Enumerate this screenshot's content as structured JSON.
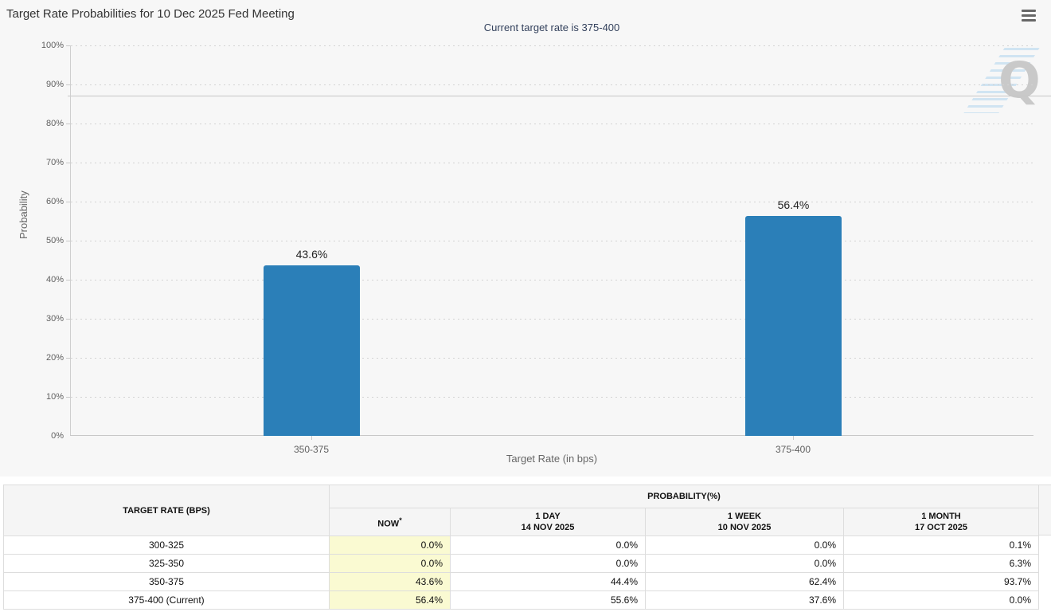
{
  "page": {
    "menu_icon": "hamburger-menu-icon",
    "watermark_letter": "Q"
  },
  "colors": {
    "bar": "#2b7fb8",
    "panel_bg": "#f7f7f7",
    "subtitle_text": "#33415c",
    "now_column_bg": "#fafad2",
    "table_border": "#dddddd",
    "header_row_bg": "#f5f5f5"
  },
  "chart_data": [
    {
      "type": "bar",
      "title": "Target Rate Probabilities for 10 Dec 2025 Fed Meeting",
      "subtitle": "Current target rate is 375-400",
      "categories": [
        "350-375",
        "375-400"
      ],
      "values": [
        43.6,
        56.4
      ],
      "data_labels": [
        "43.6%",
        "56.4%"
      ],
      "xlabel": "Target Rate (in bps)",
      "ylabel": "Probability",
      "ylim": [
        0,
        100
      ],
      "y_tick_labels": [
        "100%",
        "90%",
        "80%",
        "70%",
        "60%",
        "50%",
        "40%",
        "30%",
        "20%",
        "10%",
        "0%"
      ],
      "grid": "horizontal dotted gridlines every 10%",
      "legend": "none",
      "bar_color": "#2b7fb8"
    },
    {
      "type": "table",
      "group_headers": {
        "target_rate": "TARGET RATE (BPS)",
        "probability": "PROBABILITY(%)"
      },
      "columns": [
        {
          "line1": "NOW",
          "sup": "*",
          "line2": ""
        },
        {
          "line1": "1 DAY",
          "line2": "14 NOV 2025"
        },
        {
          "line1": "1 WEEK",
          "line2": "10 NOV 2025"
        },
        {
          "line1": "1 MONTH",
          "line2": "17 OCT 2025"
        }
      ],
      "rows": [
        {
          "rate": "300-325",
          "values": [
            "0.0%",
            "0.0%",
            "0.0%",
            "0.1%"
          ]
        },
        {
          "rate": "325-350",
          "values": [
            "0.0%",
            "0.0%",
            "0.0%",
            "6.3%"
          ]
        },
        {
          "rate": "350-375",
          "values": [
            "43.6%",
            "44.4%",
            "62.4%",
            "93.7%"
          ]
        },
        {
          "rate": "375-400 (Current)",
          "values": [
            "56.4%",
            "55.6%",
            "37.6%",
            "0.0%"
          ]
        }
      ]
    }
  ]
}
